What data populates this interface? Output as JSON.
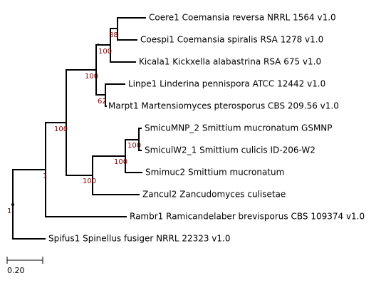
{
  "tree": {
    "leaves": [
      "Coere1 Coemansia reversa NRRL 1564 v1.0",
      "Coespi1 Coemansia spiralis RSA 1278 v1.0",
      "Kicala1 Kickxella alabastrina RSA 675 v1.0",
      "Linpe1 Linderina pennispora ATCC 12442 v1.0",
      "Marpt1 Martensiomyces pterosporus CBS 209.56 v1.0",
      "SmicuMNP_2 Smittium mucronatum GSMNP",
      "SmiculW2_1 Smittium culicis ID-206-W2",
      "Smimuc2 Smittium mucronatum",
      "Zancul2 Zancudomyces culisetae",
      "Rambr1 Ramicandelaber brevisporus CBS 109374 v1.0",
      "Spifus1 Spinellus fusiger NRRL 22323 v1.0"
    ],
    "supports": [
      "88",
      "100",
      "62",
      "100",
      "100",
      "100",
      "100",
      "100",
      "1",
      "1"
    ],
    "scale_label": "0.20"
  }
}
